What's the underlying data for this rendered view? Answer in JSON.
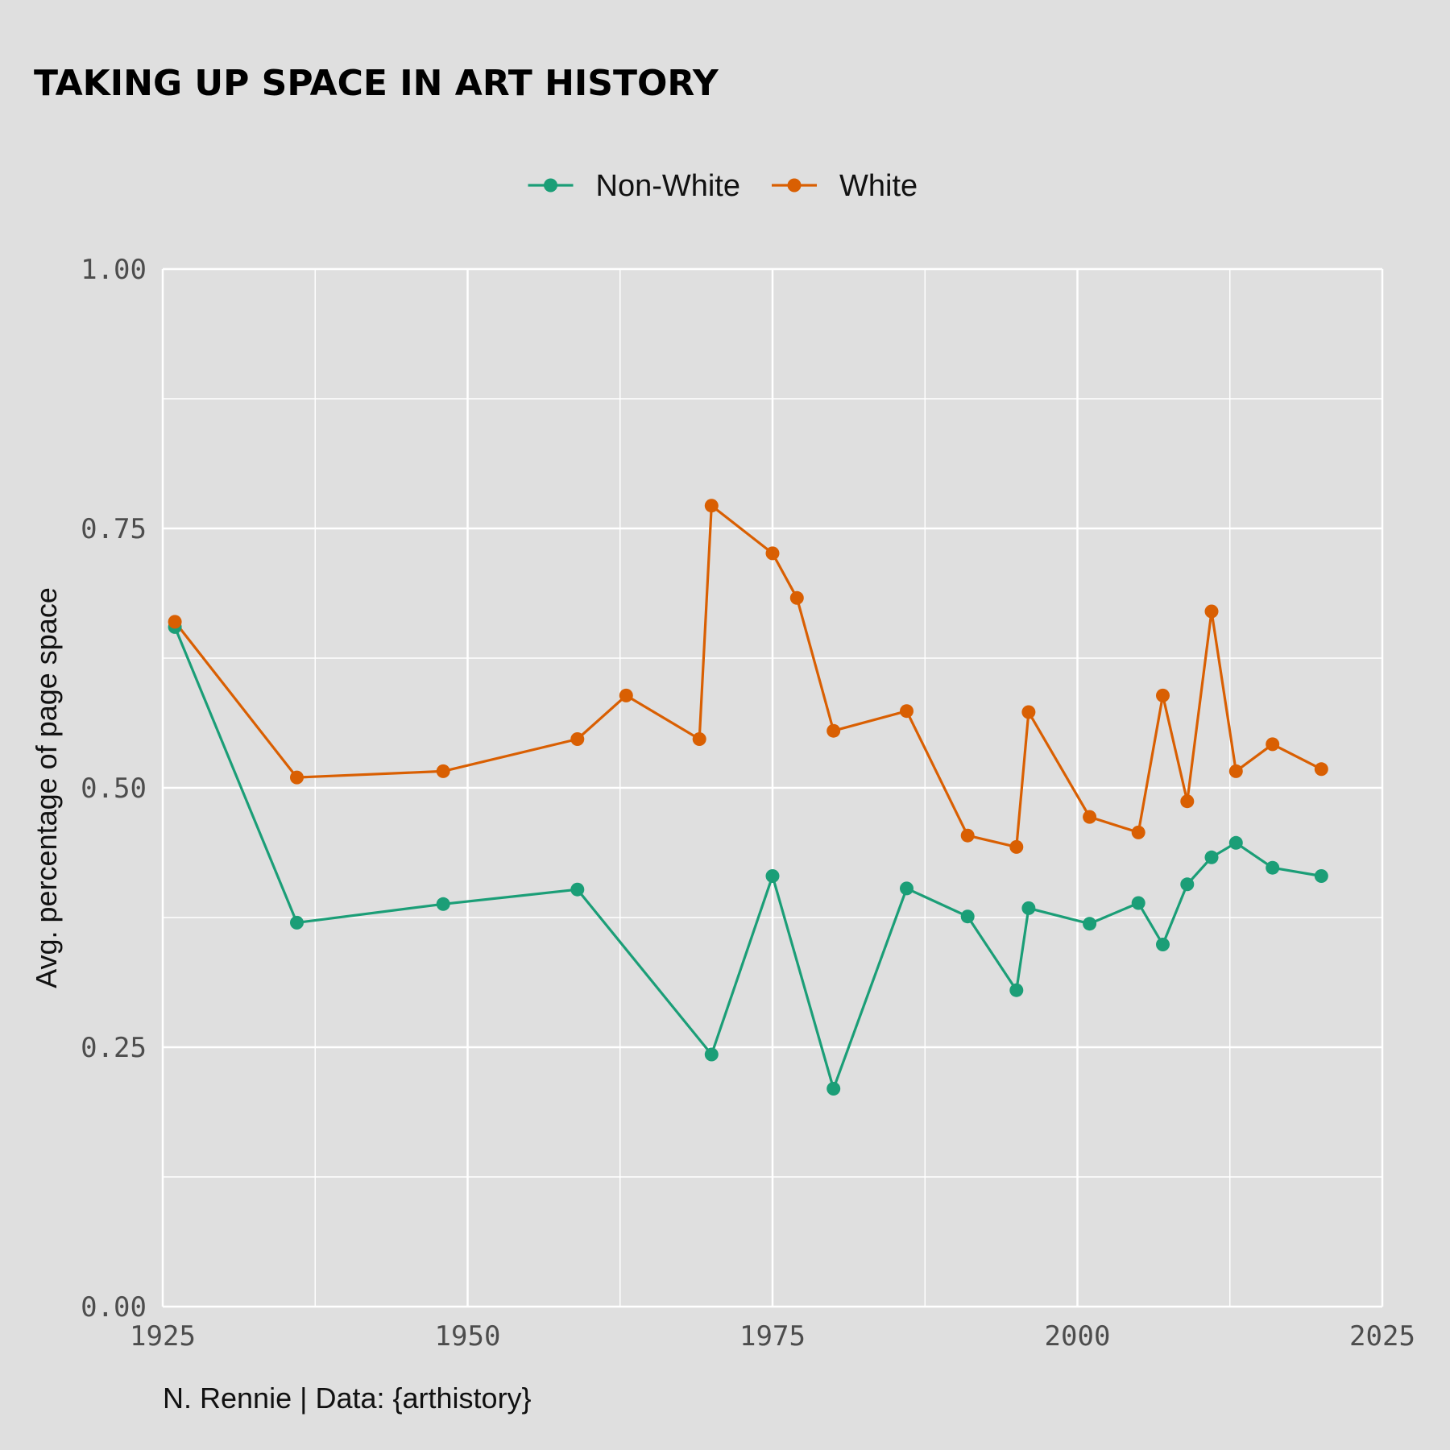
{
  "chart_data": {
    "type": "line",
    "title": "TAKING UP SPACE IN ART HISTORY",
    "subtitle": "",
    "xlabel": "",
    "ylabel": "Avg. percentage of page space",
    "caption": "N. Rennie | Data: {arthistory}",
    "xlim": [
      1925,
      2025
    ],
    "ylim": [
      0,
      1
    ],
    "x_ticks": [
      1925,
      1950,
      1975,
      2000,
      2025
    ],
    "x_tick_labels": [
      "1925",
      "1950",
      "1975",
      "2000",
      "2025"
    ],
    "y_ticks": [
      0,
      0.25,
      0.5,
      0.75,
      1.0
    ],
    "y_tick_labels": [
      "0.00",
      "0.25",
      "0.50",
      "0.75",
      "1.00"
    ],
    "grid": true,
    "legend_position": "top",
    "series": [
      {
        "name": "Non-White",
        "color": "#1b9e77",
        "points": [
          [
            1926,
            0.655
          ],
          [
            1936,
            0.37
          ],
          [
            1948,
            0.388
          ],
          [
            1959,
            0.402
          ],
          [
            1970,
            0.243
          ],
          [
            1975,
            0.415
          ],
          [
            1980,
            0.21
          ],
          [
            1986,
            0.403
          ],
          [
            1991,
            0.376
          ],
          [
            1995,
            0.305
          ],
          [
            1996,
            0.384
          ],
          [
            2001,
            0.369
          ],
          [
            2005,
            0.389
          ],
          [
            2007,
            0.349
          ],
          [
            2009,
            0.407
          ],
          [
            2011,
            0.433
          ],
          [
            2013,
            0.447
          ],
          [
            2016,
            0.423
          ],
          [
            2020,
            0.415
          ]
        ]
      },
      {
        "name": "White",
        "color": "#d95f02",
        "points": [
          [
            1926,
            0.66
          ],
          [
            1936,
            0.51
          ],
          [
            1948,
            0.516
          ],
          [
            1959,
            0.547
          ],
          [
            1963,
            0.589
          ],
          [
            1969,
            0.547
          ],
          [
            1970,
            0.772
          ],
          [
            1975,
            0.726
          ],
          [
            1977,
            0.683
          ],
          [
            1980,
            0.555
          ],
          [
            1986,
            0.574
          ],
          [
            1991,
            0.454
          ],
          [
            1995,
            0.443
          ],
          [
            1996,
            0.573
          ],
          [
            2001,
            0.472
          ],
          [
            2005,
            0.457
          ],
          [
            2007,
            0.589
          ],
          [
            2009,
            0.487
          ],
          [
            2011,
            0.67
          ],
          [
            2013,
            0.516
          ],
          [
            2016,
            0.542
          ],
          [
            2020,
            0.518
          ]
        ]
      }
    ]
  }
}
